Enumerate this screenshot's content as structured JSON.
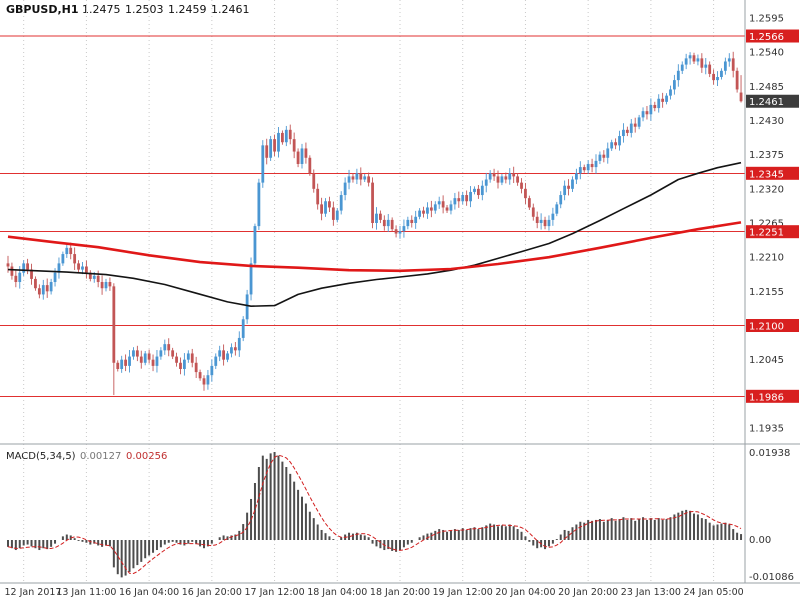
{
  "header": {
    "symbol_period": "GBPUSD,H1",
    "open": "1.2475",
    "high": "1.2503",
    "low": "1.2459",
    "close": "1.2461"
  },
  "price_axis": {
    "ticks": [
      "1.2595",
      "1.2540",
      "1.2485",
      "1.2430",
      "1.2375",
      "1.2320",
      "1.2265",
      "1.2210",
      "1.2155",
      "1.2100",
      "1.2045",
      "1.1990",
      "1.1935"
    ],
    "current_price": "1.2461",
    "level_badges": [
      "1.2566",
      "1.2345",
      "1.2251",
      "1.2100",
      "1.1986"
    ]
  },
  "time_axis": {
    "labels": [
      "12 Jan 2017",
      "13 Jan 11:00",
      "16 Jan 04:00",
      "16 Jan 20:00",
      "17 Jan 12:00",
      "18 Jan 04:00",
      "18 Jan 20:00",
      "19 Jan 12:00",
      "20 Jan 04:00",
      "20 Jan 20:00",
      "23 Jan 13:00",
      "24 Jan 05:00"
    ]
  },
  "indicator": {
    "label": "MACD(5,34,5)",
    "value_main": "0.00127",
    "value_signal": "0.00256",
    "axis": {
      "max": "0.01938",
      "zero": "0.00",
      "min": "-0.01086"
    }
  },
  "colors": {
    "up": "#4a96d2",
    "down": "#c25555",
    "ma_fast": "#141414",
    "ma_slow": "#e01818",
    "level": "#e03030",
    "level_badge": "#d81f1f",
    "price_badge": "#3c3c3c",
    "grid": "#c9c9c9",
    "macd_bar": "#4d4d4d",
    "signal": "#d22020",
    "axis_text": "#333333"
  },
  "chart_data": {
    "type": "candlestick_with_macd",
    "symbol": "GBPUSD",
    "timeframe": "H1",
    "last_ohlc": {
      "open": 1.2475,
      "high": 1.2503,
      "low": 1.2459,
      "close": 1.2461
    },
    "horizontal_levels": [
      1.2566,
      1.2345,
      1.2251,
      1.21,
      1.1986
    ],
    "price_ticks_range": {
      "top": 1.2595,
      "bottom": 1.1935,
      "step": 0.0055
    },
    "macd_axis": {
      "max": 0.01938,
      "zero": 0.0,
      "min": -0.01086
    },
    "closes": [
      1.2195,
      1.218,
      1.217,
      1.2185,
      1.22,
      1.219,
      1.2175,
      1.216,
      1.215,
      1.2165,
      1.2155,
      1.217,
      1.2185,
      1.22,
      1.2215,
      1.2225,
      1.2215,
      1.22,
      1.219,
      1.2195,
      1.2185,
      1.2175,
      1.218,
      1.217,
      1.216,
      1.217,
      1.2163,
      1.204,
      1.203,
      1.2045,
      1.2035,
      1.205,
      1.206,
      1.205,
      1.204,
      1.2055,
      1.2045,
      1.2035,
      1.205,
      1.206,
      1.207,
      1.206,
      1.205,
      1.204,
      1.203,
      1.2045,
      1.2055,
      1.204,
      1.2025,
      1.2015,
      1.2005,
      1.202,
      1.2035,
      1.205,
      1.206,
      1.2045,
      1.2055,
      1.2065,
      1.206,
      1.208,
      1.211,
      1.215,
      1.22,
      1.226,
      1.233,
      1.239,
      1.237,
      1.24,
      1.238,
      1.241,
      1.2395,
      1.2415,
      1.24,
      1.238,
      1.236,
      1.2385,
      1.237,
      1.2345,
      1.232,
      1.2295,
      1.228,
      1.23,
      1.229,
      1.227,
      1.2285,
      1.231,
      1.233,
      1.234,
      1.2335,
      1.2345,
      1.2335,
      1.234,
      1.233,
      1.2265,
      1.228,
      1.227,
      1.226,
      1.227,
      1.2255,
      1.2248,
      1.2252,
      1.226,
      1.227,
      1.2265,
      1.2275,
      1.2285,
      1.228,
      1.229,
      1.2285,
      1.2295,
      1.23,
      1.229,
      1.2285,
      1.2295,
      1.2305,
      1.23,
      1.231,
      1.23,
      1.2315,
      1.232,
      1.231,
      1.2325,
      1.2335,
      1.2345,
      1.234,
      1.233,
      1.234,
      1.2335,
      1.2345,
      1.234,
      1.233,
      1.232,
      1.2305,
      1.229,
      1.2275,
      1.2265,
      1.227,
      1.226,
      1.227,
      1.228,
      1.2295,
      1.231,
      1.2325,
      1.232,
      1.2335,
      1.2345,
      1.2355,
      1.235,
      1.236,
      1.2355,
      1.2365,
      1.2375,
      1.237,
      1.2385,
      1.2395,
      1.239,
      1.2405,
      1.2415,
      1.241,
      1.2425,
      1.242,
      1.2435,
      1.2445,
      1.244,
      1.2455,
      1.245,
      1.2465,
      1.246,
      1.247,
      1.248,
      1.2495,
      1.251,
      1.252,
      1.253,
      1.2535,
      1.2525,
      1.253,
      1.2515,
      1.252,
      1.2505,
      1.2495,
      1.25,
      1.251,
      1.2525,
      1.253,
      1.251,
      1.248,
      1.2461
    ],
    "candle_overrides": {
      "0": [
        1.22,
        1.2212,
        1.2185,
        1.2195
      ],
      "27": [
        1.2163,
        1.2168,
        1.1988,
        1.204
      ],
      "50": [
        1.2015,
        1.202,
        1.1995,
        1.2005
      ],
      "174": [
        1.253,
        1.254,
        1.252,
        1.2535
      ],
      "187": [
        1.2475,
        1.2503,
        1.2459,
        1.2461
      ]
    },
    "ma_fast_black": [
      [
        0,
        1.219
      ],
      [
        15,
        1.2186
      ],
      [
        25,
        1.2182
      ],
      [
        32,
        1.2176
      ],
      [
        40,
        1.2166
      ],
      [
        48,
        1.2152
      ],
      [
        56,
        1.2138
      ],
      [
        62,
        1.2131
      ],
      [
        68,
        1.2132
      ],
      [
        74,
        1.215
      ],
      [
        80,
        1.216
      ],
      [
        87,
        1.2168
      ],
      [
        94,
        1.2174
      ],
      [
        100,
        1.2178
      ],
      [
        107,
        1.2183
      ],
      [
        113,
        1.2189
      ],
      [
        119,
        1.2197
      ],
      [
        125,
        1.2208
      ],
      [
        131,
        1.2219
      ],
      [
        138,
        1.2232
      ],
      [
        144,
        1.2248
      ],
      [
        151,
        1.2269
      ],
      [
        157,
        1.2288
      ],
      [
        164,
        1.231
      ],
      [
        171,
        1.2335
      ],
      [
        176,
        1.2345
      ],
      [
        181,
        1.2354
      ],
      [
        187,
        1.2362
      ]
    ],
    "ma_slow_red": [
      [
        0,
        1.2243
      ],
      [
        12,
        1.2234
      ],
      [
        23,
        1.2226
      ],
      [
        36,
        1.2213
      ],
      [
        49,
        1.2202
      ],
      [
        62,
        1.2196
      ],
      [
        74,
        1.2193
      ],
      [
        87,
        1.2189
      ],
      [
        100,
        1.2188
      ],
      [
        113,
        1.2191
      ],
      [
        125,
        1.2199
      ],
      [
        138,
        1.221
      ],
      [
        151,
        1.2225
      ],
      [
        164,
        1.2241
      ],
      [
        176,
        1.2255
      ],
      [
        187,
        1.2266
      ]
    ],
    "macd_histogram": [
      -0.0015,
      -0.0018,
      -0.0022,
      -0.0018,
      -0.0012,
      -0.001,
      -0.0014,
      -0.0018,
      -0.0022,
      -0.0018,
      -0.002,
      -0.0015,
      -0.0008,
      0.0,
      0.0008,
      0.0012,
      0.001,
      0.0004,
      -0.0002,
      -0.0004,
      -0.0006,
      -0.001,
      -0.0008,
      -0.0012,
      -0.0015,
      -0.0012,
      -0.0014,
      -0.006,
      -0.0075,
      -0.0082,
      -0.0078,
      -0.007,
      -0.0062,
      -0.0055,
      -0.0048,
      -0.004,
      -0.0034,
      -0.0028,
      -0.0022,
      -0.0016,
      -0.001,
      -0.0006,
      -0.0004,
      -0.0006,
      -0.001,
      -0.0012,
      -0.0008,
      -0.0004,
      -0.0008,
      -0.0014,
      -0.0018,
      -0.0014,
      -0.0008,
      0.0,
      0.0006,
      0.001,
      0.0008,
      0.001,
      0.0012,
      0.002,
      0.0035,
      0.006,
      0.009,
      0.0125,
      0.016,
      0.0185,
      0.0178,
      0.019,
      0.0193,
      0.0185,
      0.0172,
      0.016,
      0.0145,
      0.0128,
      0.011,
      0.0095,
      0.008,
      0.0062,
      0.0048,
      0.0034,
      0.0022,
      0.0015,
      0.0008,
      0.0002,
      0.0,
      0.0006,
      0.0012,
      0.0016,
      0.0014,
      0.0016,
      0.0012,
      0.001,
      0.0006,
      -0.0008,
      -0.0014,
      -0.0018,
      -0.0022,
      -0.002,
      -0.0024,
      -0.0026,
      -0.0022,
      -0.0016,
      -0.001,
      -0.0006,
      0.0,
      0.0006,
      0.001,
      0.0014,
      0.0016,
      0.002,
      0.0024,
      0.0022,
      0.0018,
      0.002,
      0.0024,
      0.0022,
      0.0026,
      0.0022,
      0.0026,
      0.0028,
      0.0024,
      0.0028,
      0.0032,
      0.0036,
      0.0034,
      0.003,
      0.0032,
      0.003,
      0.0034,
      0.003,
      0.0024,
      0.0018,
      0.0008,
      -0.0004,
      -0.0012,
      -0.0018,
      -0.0016,
      -0.002,
      -0.0014,
      -0.0008,
      0.0002,
      0.0012,
      0.0022,
      0.002,
      0.0028,
      0.0034,
      0.004,
      0.0038,
      0.0044,
      0.0042,
      0.0044,
      0.0046,
      0.004,
      0.0044,
      0.0048,
      0.0042,
      0.0046,
      0.005,
      0.0044,
      0.0048,
      0.0042,
      0.0046,
      0.005,
      0.0044,
      0.0048,
      0.0044,
      0.0048,
      0.0044,
      0.0046,
      0.005,
      0.0056,
      0.006,
      0.0064,
      0.0066,
      0.0064,
      0.0058,
      0.0056,
      0.0048,
      0.0046,
      0.0038,
      0.0032,
      0.0034,
      0.0036,
      0.0038,
      0.0034,
      0.0024,
      0.0016,
      0.0013
    ]
  }
}
